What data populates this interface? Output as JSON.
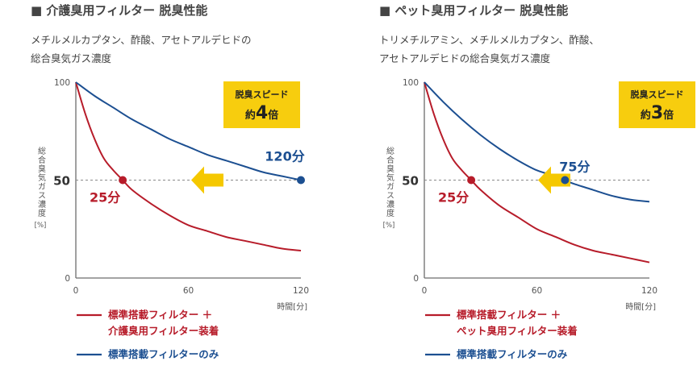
{
  "colors": {
    "standard_filter": "#b71c2a",
    "standard_only": "#1c4f91",
    "badge_bg": "#f7cd0e",
    "arrow": "#f5c800",
    "axis": "#6d6d6d",
    "dashed": "#8a8a8a"
  },
  "panels": [
    {
      "title": "■ 介護臭用フィルター 脱臭性能",
      "subtitle_lines": [
        "メチルメルカプタン、酢酸、アセトアルデヒドの",
        "総合臭気ガス濃度"
      ],
      "badge": {
        "line1": "脱臭スピード",
        "prefix": "約",
        "number": "4",
        "suffix": "倍"
      },
      "legend": [
        {
          "lines": [
            "標準搭載フィルター ＋",
            "介護臭用フィルター装着"
          ]
        },
        {
          "lines": [
            "標準搭載フィルターのみ"
          ]
        }
      ],
      "chart_data": {
        "type": "line",
        "ylabel": "総合臭気ガス濃度",
        "yunit": "[%]",
        "xlabel": "時間[分]",
        "xlim": [
          0,
          120
        ],
        "ylim": [
          0,
          100
        ],
        "x_ticks": [
          "0",
          "60",
          "120"
        ],
        "y_ticks": [
          "0",
          "50",
          "100"
        ],
        "reference_line": 50,
        "series": [
          {
            "key": "with_special_filter",
            "x": [
              0,
              5,
              10,
              15,
              20,
              25,
              30,
              40,
              50,
              60,
              70,
              80,
              90,
              100,
              110,
              120
            ],
            "values": [
              100,
              84,
              71,
              61,
              55,
              50,
              45,
              38,
              32,
              27,
              24,
              21,
              19,
              17,
              15,
              14
            ]
          },
          {
            "key": "standard_only",
            "x": [
              0,
              10,
              20,
              30,
              40,
              50,
              60,
              70,
              80,
              90,
              100,
              110,
              120
            ],
            "values": [
              100,
              93,
              87,
              81,
              76,
              71,
              67,
              63,
              60,
              57,
              54,
              52,
              50
            ]
          }
        ],
        "markers": [
          {
            "x": 25,
            "y": 50,
            "label": "25分",
            "series": "with_special_filter"
          },
          {
            "x": 120,
            "y": 50,
            "label": "120分",
            "series": "standard_only"
          }
        ]
      }
    },
    {
      "title": "■ ペット臭用フィルター 脱臭性能",
      "subtitle_lines": [
        "トリメチルアミン、メチルメルカプタン、酢酸、",
        "アセトアルデヒドの総合臭気ガス濃度"
      ],
      "badge": {
        "line1": "脱臭スピード",
        "prefix": "約",
        "number": "3",
        "suffix": "倍"
      },
      "legend": [
        {
          "lines": [
            "標準搭載フィルター ＋",
            "ペット臭用フィルター装着"
          ]
        },
        {
          "lines": [
            "標準搭載フィルターのみ"
          ]
        }
      ],
      "chart_data": {
        "type": "line",
        "ylabel": "総合臭気ガス濃度",
        "yunit": "[%]",
        "xlabel": "時間[分]",
        "xlim": [
          0,
          120
        ],
        "ylim": [
          0,
          100
        ],
        "x_ticks": [
          "0",
          "60",
          "120"
        ],
        "y_ticks": [
          "0",
          "50",
          "100"
        ],
        "reference_line": 50,
        "series": [
          {
            "key": "with_special_filter",
            "x": [
              0,
              5,
              10,
              15,
              20,
              25,
              30,
              40,
              50,
              60,
              70,
              80,
              90,
              100,
              110,
              120
            ],
            "values": [
              100,
              84,
              71,
              61,
              55,
              50,
              45,
              37,
              31,
              25,
              21,
              17,
              14,
              12,
              10,
              8
            ]
          },
          {
            "key": "standard_only",
            "x": [
              0,
              10,
              20,
              30,
              40,
              50,
              60,
              70,
              75,
              80,
              90,
              100,
              110,
              120
            ],
            "values": [
              100,
              90,
              81,
              73,
              66,
              60,
              55,
              52,
              50,
              48,
              45,
              42,
              40,
              39
            ]
          }
        ],
        "markers": [
          {
            "x": 25,
            "y": 50,
            "label": "25分",
            "series": "with_special_filter"
          },
          {
            "x": 75,
            "y": 50,
            "label": "75分",
            "series": "standard_only"
          }
        ]
      }
    }
  ]
}
